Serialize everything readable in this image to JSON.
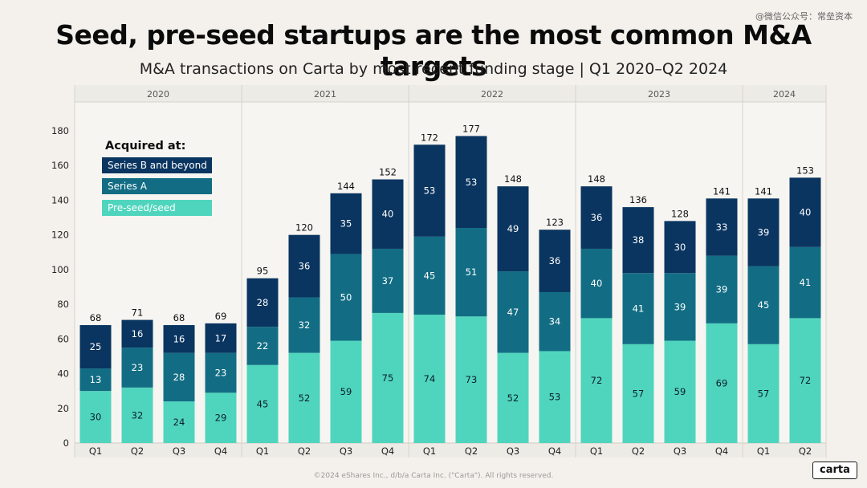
{
  "watermark": "@微信公众号：常垒资本",
  "chart_data": {
    "type": "bar",
    "stacked": true,
    "title": "Seed, pre-seed startups are the most common M&A targets",
    "subtitle": "M&A transactions on Carta by most recent funding stage | Q1 2020–Q2 2024",
    "years": [
      {
        "label": "2020",
        "quarters": 4
      },
      {
        "label": "2021",
        "quarters": 4
      },
      {
        "label": "2022",
        "quarters": 4
      },
      {
        "label": "2023",
        "quarters": 4
      },
      {
        "label": "2024",
        "quarters": 2
      }
    ],
    "categories": [
      "Q1",
      "Q2",
      "Q3",
      "Q4",
      "Q1",
      "Q2",
      "Q3",
      "Q4",
      "Q1",
      "Q2",
      "Q3",
      "Q4",
      "Q1",
      "Q2",
      "Q3",
      "Q4",
      "Q1",
      "Q2"
    ],
    "series": [
      {
        "name": "Pre-seed/seed",
        "color": "#4fd5bd",
        "values": [
          30,
          32,
          24,
          29,
          45,
          52,
          59,
          75,
          74,
          73,
          52,
          53,
          72,
          57,
          59,
          69,
          57,
          72
        ]
      },
      {
        "name": "Series A",
        "color": "#126d84",
        "values": [
          13,
          23,
          28,
          23,
          22,
          32,
          50,
          37,
          45,
          51,
          47,
          34,
          40,
          41,
          39,
          39,
          45,
          41
        ]
      },
      {
        "name": "Series B and beyond",
        "color": "#0a3560",
        "values": [
          25,
          16,
          16,
          17,
          28,
          36,
          35,
          40,
          53,
          53,
          49,
          36,
          36,
          38,
          30,
          33,
          39,
          40
        ]
      }
    ],
    "totals": [
      68,
      71,
      68,
      69,
      95,
      120,
      144,
      152,
      172,
      177,
      148,
      123,
      148,
      136,
      128,
      141,
      141,
      153
    ],
    "yticks": [
      0,
      20,
      40,
      60,
      80,
      100,
      120,
      140,
      160,
      180
    ],
    "ylim": [
      0,
      180
    ],
    "legend_title": "Acquired at:",
    "legend_order": [
      "Series B and beyond",
      "Series A",
      "Pre-seed/seed"
    ],
    "legend_position": "top-left"
  },
  "footer": "©2024 eShares Inc., d/b/a Carta Inc. (\"Carta\"). All rights reserved.",
  "logo": "carta"
}
